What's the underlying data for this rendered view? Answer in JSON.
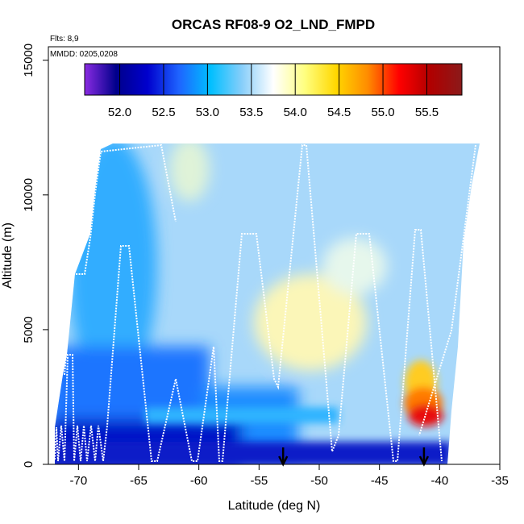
{
  "chart_data": {
    "type": "heatmap",
    "title": "ORCAS RF08-9 O2_LND_FMPD",
    "annotations": [
      "Flts: 8,9",
      "MMDD: 0205,0208"
    ],
    "xlabel": "Latitude (deg N)",
    "ylabel": "Altitude (m)",
    "xlim": [
      -72.5,
      -35
    ],
    "ylim": [
      0,
      15500
    ],
    "x_ticks": [
      -70,
      -65,
      -60,
      -55,
      -50,
      -45,
      -40,
      -35
    ],
    "x_tick_labels": [
      "-70",
      "-65",
      "-60",
      "-55",
      "-50",
      "-45",
      "-40",
      "-35"
    ],
    "y_ticks": [
      0,
      5000,
      10000,
      15000
    ],
    "y_tick_labels": [
      "0",
      "5000",
      "10000",
      "15000"
    ],
    "colorbar": {
      "range": [
        51.6,
        55.9
      ],
      "ticks": [
        52.0,
        52.5,
        53.0,
        53.5,
        54.0,
        54.5,
        55.0,
        55.5
      ],
      "tick_labels": [
        "52.0",
        "52.5",
        "53.0",
        "53.5",
        "54.0",
        "54.5",
        "55.0",
        "55.5"
      ],
      "colors": [
        "#8a2be2",
        "#00008b",
        "#0000cd",
        "#1e64ff",
        "#00bfff",
        "#87cefa",
        "#ffffff",
        "#ffff80",
        "#ffd700",
        "#ff8c00",
        "#ff0000",
        "#b00000",
        "#8b1a1a"
      ]
    },
    "field_regions": [
      {
        "lat_min": -71.5,
        "lat_max": -39,
        "alt_min": 0,
        "alt_max": 700,
        "value": 52.2
      },
      {
        "lat_min": -71.5,
        "lat_max": -55,
        "alt_min": 700,
        "alt_max": 4500,
        "value": 52.7
      },
      {
        "lat_min": -68,
        "lat_max": -56,
        "alt_min": 4500,
        "alt_max": 11800,
        "value": 53.3
      },
      {
        "lat_min": -56,
        "lat_max": -38,
        "alt_min": 1000,
        "alt_max": 11800,
        "value": 53.6
      },
      {
        "lat_min": -54,
        "lat_max": -47,
        "alt_min": 2500,
        "alt_max": 6500,
        "value": 54.1
      },
      {
        "lat_min": -43,
        "lat_max": -40,
        "alt_min": 1200,
        "alt_max": 3000,
        "value": 55.3
      }
    ],
    "arrows_lat": [
      -53,
      -41.3
    ]
  }
}
